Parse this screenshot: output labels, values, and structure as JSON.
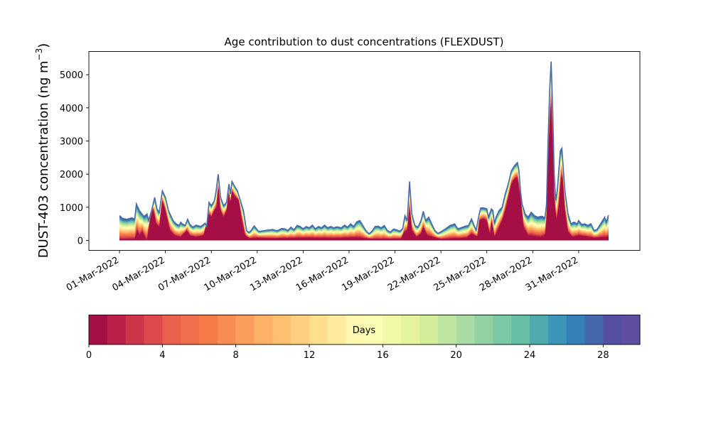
{
  "chart_data": {
    "type": "area",
    "title": "Age contribution to dust concentrations (FLEXDUST)",
    "ylabel": "DUST-403 concentration (ng m",
    "ylabel_sup": "−3",
    "ylabel_close": ")",
    "xlabel": "",
    "ylim": [
      -300,
      5700
    ],
    "yticks": [
      0,
      1000,
      2000,
      3000,
      4000,
      5000
    ],
    "x_start": "2022-03-01",
    "x_end": "2022-04-01",
    "xlim": [
      "2022-02-27",
      "2022-04-04"
    ],
    "xticks": [
      "01-Mar-2022",
      "04-Mar-2022",
      "07-Mar-2022",
      "10-Mar-2022",
      "13-Mar-2022",
      "16-Mar-2022",
      "19-Mar-2022",
      "22-Mar-2022",
      "25-Mar-2022",
      "28-Mar-2022",
      "31-Mar-2022"
    ],
    "stacked_by": "Days",
    "total": [
      [
        0,
        750
      ],
      [
        0.2,
        660
      ],
      [
        0.5,
        640
      ],
      [
        0.8,
        680
      ],
      [
        1.0,
        650
      ],
      [
        1.1,
        1100
      ],
      [
        1.3,
        900
      ],
      [
        1.6,
        720
      ],
      [
        1.8,
        800
      ],
      [
        1.9,
        600
      ],
      [
        2.1,
        900
      ],
      [
        2.3,
        1300
      ],
      [
        2.45,
        950
      ],
      [
        2.6,
        850
      ],
      [
        2.8,
        1500
      ],
      [
        3.0,
        1300
      ],
      [
        3.2,
        900
      ],
      [
        3.5,
        600
      ],
      [
        3.7,
        500
      ],
      [
        3.9,
        450
      ],
      [
        4.0,
        550
      ],
      [
        4.1,
        500
      ],
      [
        4.3,
        450
      ],
      [
        4.45,
        640
      ],
      [
        4.6,
        480
      ],
      [
        4.8,
        400
      ],
      [
        5.0,
        460
      ],
      [
        5.3,
        420
      ],
      [
        5.6,
        520
      ],
      [
        5.7,
        420
      ],
      [
        5.85,
        1150
      ],
      [
        6.0,
        1050
      ],
      [
        6.2,
        1200
      ],
      [
        6.3,
        1450
      ],
      [
        6.45,
        2000
      ],
      [
        6.6,
        1300
      ],
      [
        6.8,
        1050
      ],
      [
        7.0,
        1150
      ],
      [
        7.15,
        1700
      ],
      [
        7.25,
        1400
      ],
      [
        7.35,
        1780
      ],
      [
        7.5,
        1650
      ],
      [
        7.7,
        1500
      ],
      [
        7.9,
        1200
      ],
      [
        8.1,
        900
      ],
      [
        8.3,
        300
      ],
      [
        8.45,
        240
      ],
      [
        8.6,
        300
      ],
      [
        8.8,
        440
      ],
      [
        8.95,
        350
      ],
      [
        9.1,
        270
      ],
      [
        9.5,
        300
      ],
      [
        10.0,
        330
      ],
      [
        10.3,
        290
      ],
      [
        10.6,
        360
      ],
      [
        10.8,
        350
      ],
      [
        11.0,
        300
      ],
      [
        11.2,
        400
      ],
      [
        11.4,
        320
      ],
      [
        11.6,
        450
      ],
      [
        11.8,
        420
      ],
      [
        12.0,
        350
      ],
      [
        12.2,
        420
      ],
      [
        12.4,
        380
      ],
      [
        12.6,
        460
      ],
      [
        12.8,
        350
      ],
      [
        13.0,
        420
      ],
      [
        13.2,
        380
      ],
      [
        13.4,
        460
      ],
      [
        13.6,
        380
      ],
      [
        13.8,
        420
      ],
      [
        14.0,
        380
      ],
      [
        14.2,
        410
      ],
      [
        14.5,
        380
      ],
      [
        14.7,
        460
      ],
      [
        14.9,
        400
      ],
      [
        15.1,
        500
      ],
      [
        15.3,
        420
      ],
      [
        15.5,
        560
      ],
      [
        15.7,
        600
      ],
      [
        15.9,
        450
      ],
      [
        16.1,
        300
      ],
      [
        16.3,
        200
      ],
      [
        16.5,
        280
      ],
      [
        16.7,
        420
      ],
      [
        16.9,
        430
      ],
      [
        17.1,
        380
      ],
      [
        17.3,
        450
      ],
      [
        17.5,
        300
      ],
      [
        17.7,
        250
      ],
      [
        17.9,
        340
      ],
      [
        18.1,
        320
      ],
      [
        18.3,
        280
      ],
      [
        18.5,
        350
      ],
      [
        18.65,
        750
      ],
      [
        18.8,
        600
      ],
      [
        18.95,
        1780
      ],
      [
        19.1,
        800
      ],
      [
        19.3,
        450
      ],
      [
        19.5,
        400
      ],
      [
        19.7,
        600
      ],
      [
        19.85,
        880
      ],
      [
        20.0,
        600
      ],
      [
        20.2,
        700
      ],
      [
        20.4,
        500
      ],
      [
        20.6,
        300
      ],
      [
        20.8,
        210
      ],
      [
        21.0,
        260
      ],
      [
        21.3,
        350
      ],
      [
        21.6,
        450
      ],
      [
        21.9,
        500
      ],
      [
        22.1,
        350
      ],
      [
        22.3,
        380
      ],
      [
        22.6,
        430
      ],
      [
        22.8,
        450
      ],
      [
        23.0,
        650
      ],
      [
        23.3,
        300
      ],
      [
        23.5,
        800
      ],
      [
        23.6,
        980
      ],
      [
        23.8,
        980
      ],
      [
        24.0,
        950
      ],
      [
        24.1,
        700
      ],
      [
        24.3,
        950
      ],
      [
        24.4,
        900
      ],
      [
        24.5,
        500
      ],
      [
        24.6,
        700
      ],
      [
        24.8,
        900
      ],
      [
        25.0,
        1000
      ],
      [
        25.2,
        1400
      ],
      [
        25.4,
        1700
      ],
      [
        25.6,
        2100
      ],
      [
        25.8,
        2250
      ],
      [
        26.0,
        2350
      ],
      [
        26.1,
        2100
      ],
      [
        26.2,
        1500
      ],
      [
        26.3,
        1100
      ],
      [
        26.5,
        800
      ],
      [
        26.7,
        700
      ],
      [
        26.9,
        850
      ],
      [
        27.1,
        750
      ],
      [
        27.3,
        700
      ],
      [
        27.6,
        730
      ],
      [
        27.8,
        680
      ],
      [
        27.9,
        1100
      ],
      [
        28.0,
        3000
      ],
      [
        28.1,
        4500
      ],
      [
        28.2,
        5400
      ],
      [
        28.3,
        4000
      ],
      [
        28.4,
        2000
      ],
      [
        28.5,
        1200
      ],
      [
        28.6,
        1500
      ],
      [
        28.8,
        2700
      ],
      [
        28.9,
        2780
      ],
      [
        29.1,
        1500
      ],
      [
        29.3,
        800
      ],
      [
        29.5,
        500
      ],
      [
        29.7,
        550
      ],
      [
        29.9,
        500
      ],
      [
        30.0,
        600
      ],
      [
        30.2,
        480
      ],
      [
        30.4,
        500
      ],
      [
        30.6,
        450
      ],
      [
        30.8,
        500
      ],
      [
        31.0,
        300
      ],
      [
        31.2,
        330
      ],
      [
        31.5,
        550
      ],
      [
        31.7,
        700
      ],
      [
        31.8,
        550
      ],
      [
        31.95,
        760
      ]
    ],
    "young": [
      [
        0,
        30
      ],
      [
        1.0,
        40
      ],
      [
        1.15,
        300
      ],
      [
        1.3,
        150
      ],
      [
        1.5,
        280
      ],
      [
        1.6,
        150
      ],
      [
        1.8,
        0
      ],
      [
        2.0,
        650
      ],
      [
        2.2,
        950
      ],
      [
        2.4,
        500
      ],
      [
        2.6,
        400
      ],
      [
        2.8,
        1200
      ],
      [
        3.0,
        900
      ],
      [
        3.3,
        300
      ],
      [
        3.6,
        150
      ],
      [
        4.0,
        100
      ],
      [
        4.4,
        300
      ],
      [
        4.6,
        150
      ],
      [
        5.0,
        100
      ],
      [
        5.5,
        150
      ],
      [
        5.85,
        800
      ],
      [
        6.0,
        700
      ],
      [
        6.2,
        900
      ],
      [
        6.35,
        1000
      ],
      [
        6.45,
        1650
      ],
      [
        6.6,
        900
      ],
      [
        6.8,
        700
      ],
      [
        7.0,
        900
      ],
      [
        7.15,
        1450
      ],
      [
        7.25,
        1100
      ],
      [
        7.35,
        1500
      ],
      [
        7.5,
        1350
      ],
      [
        7.8,
        1200
      ],
      [
        8.0,
        600
      ],
      [
        8.2,
        150
      ],
      [
        8.5,
        60
      ],
      [
        9.0,
        80
      ],
      [
        10.0,
        60
      ],
      [
        12.0,
        80
      ],
      [
        14.0,
        70
      ],
      [
        15.5,
        90
      ],
      [
        16.5,
        40
      ],
      [
        18.4,
        50
      ],
      [
        18.6,
        250
      ],
      [
        18.8,
        300
      ],
      [
        18.95,
        1000
      ],
      [
        19.1,
        300
      ],
      [
        19.4,
        100
      ],
      [
        19.7,
        200
      ],
      [
        19.85,
        400
      ],
      [
        20.1,
        150
      ],
      [
        21.0,
        40
      ],
      [
        22.7,
        80
      ],
      [
        23.0,
        200
      ],
      [
        23.4,
        100
      ],
      [
        23.5,
        600
      ],
      [
        23.8,
        650
      ],
      [
        24.0,
        600
      ],
      [
        24.2,
        150
      ],
      [
        24.3,
        600
      ],
      [
        24.5,
        100
      ],
      [
        24.8,
        400
      ],
      [
        25.0,
        600
      ],
      [
        25.2,
        900
      ],
      [
        25.4,
        1300
      ],
      [
        25.6,
        1700
      ],
      [
        25.8,
        1850
      ],
      [
        26.0,
        1900
      ],
      [
        26.2,
        1300
      ],
      [
        26.4,
        400
      ],
      [
        26.7,
        150
      ],
      [
        27.5,
        100
      ],
      [
        27.8,
        150
      ],
      [
        27.9,
        600
      ],
      [
        28.0,
        2200
      ],
      [
        28.1,
        3500
      ],
      [
        28.2,
        4200
      ],
      [
        28.3,
        3000
      ],
      [
        28.4,
        1300
      ],
      [
        28.55,
        600
      ],
      [
        28.7,
        1000
      ],
      [
        28.85,
        1900
      ],
      [
        28.95,
        1900
      ],
      [
        29.1,
        900
      ],
      [
        29.3,
        250
      ],
      [
        29.6,
        100
      ],
      [
        30.0,
        150
      ],
      [
        31.0,
        80
      ],
      [
        31.95,
        100
      ]
    ],
    "colorbar": {
      "label": "Days",
      "range": [
        0,
        30
      ],
      "ticks": [
        "0",
        "4",
        "8",
        "12",
        "16",
        "20",
        "24",
        "28"
      ],
      "colors": [
        "#a50f46",
        "#bc1f48",
        "#cf3549",
        "#de4a4c",
        "#e9604c",
        "#f26d4b",
        "#f67a48",
        "#f98c52",
        "#fb9e5d",
        "#fdb066",
        "#fdc070",
        "#fdd081",
        "#fedf8e",
        "#feeb9d",
        "#fff8b0",
        "#fbfcb3",
        "#f1f9a7",
        "#e3f49d",
        "#d3ee9b",
        "#bfe6a0",
        "#a9dca4",
        "#92d1a4",
        "#7bc9a4",
        "#66bea5",
        "#50aaad",
        "#3d95b7",
        "#3580b9",
        "#4468ae",
        "#544fa3",
        "#5e4fa2"
      ]
    },
    "grid": false,
    "legend": "colorbar-below"
  }
}
